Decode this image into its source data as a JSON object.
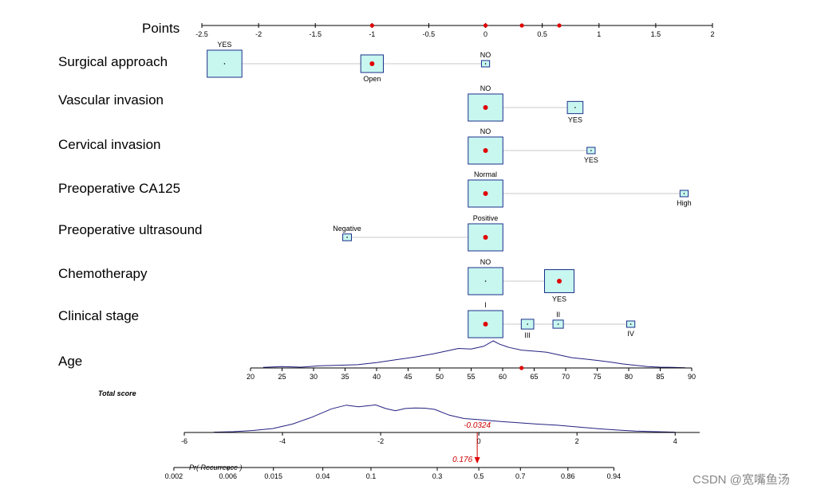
{
  "chart_data": {
    "type": "nomogram",
    "points_axis": {
      "label": "Points",
      "min": -2.5,
      "max": 2,
      "ticks": [
        -2.5,
        -2,
        -1.5,
        -1,
        -0.5,
        0,
        0.5,
        1,
        1.5,
        2
      ],
      "tick_labels": [
        "-2.5",
        "-2",
        "-1.5",
        "-1",
        "-0.5",
        "0",
        "0.5",
        "1",
        "1.5",
        "2"
      ],
      "highlight_points": [
        -1,
        0,
        0.32,
        0.65
      ]
    },
    "variables": [
      {
        "name": "Surgical approach",
        "levels": [
          {
            "label": "YES",
            "points": -2.3,
            "weight": 1.0,
            "label_pos": "above",
            "selected": false
          },
          {
            "label": "Open",
            "points": -1.0,
            "weight": 0.65,
            "label_pos": "below",
            "selected": true
          },
          {
            "label": "NO",
            "points": 0.0,
            "weight": 0.22,
            "label_pos": "above",
            "selected": false
          }
        ]
      },
      {
        "name": "Vascular invasion",
        "levels": [
          {
            "label": "NO",
            "points": 0.0,
            "weight": 1.0,
            "label_pos": "above",
            "selected": true
          },
          {
            "label": "YES",
            "points": 0.79,
            "weight": 0.45,
            "label_pos": "below",
            "selected": false
          }
        ]
      },
      {
        "name": "Cervical invasion",
        "levels": [
          {
            "label": "NO",
            "points": 0.0,
            "weight": 1.0,
            "label_pos": "above",
            "selected": true
          },
          {
            "label": "YES",
            "points": 0.93,
            "weight": 0.2,
            "label_pos": "below",
            "selected": false
          }
        ]
      },
      {
        "name": "Preoperative CA125",
        "levels": [
          {
            "label": "Normal",
            "points": 0.0,
            "weight": 1.0,
            "label_pos": "above",
            "selected": true
          },
          {
            "label": "High",
            "points": 1.75,
            "weight": 0.22,
            "label_pos": "below",
            "selected": false
          }
        ]
      },
      {
        "name": "Preoperative ultrasound",
        "levels": [
          {
            "label": "Negative",
            "points": -1.22,
            "weight": 0.25,
            "label_pos": "above",
            "selected": false
          },
          {
            "label": "Positive",
            "points": 0.0,
            "weight": 1.0,
            "label_pos": "above",
            "selected": true
          }
        ]
      },
      {
        "name": "Chemotherapy",
        "levels": [
          {
            "label": "NO",
            "points": 0.0,
            "weight": 1.0,
            "label_pos": "above",
            "selected": false
          },
          {
            "label": "YES",
            "points": 0.65,
            "weight": 0.85,
            "label_pos": "below",
            "selected": true
          }
        ]
      },
      {
        "name": "Clinical stage",
        "levels": [
          {
            "label": "I",
            "points": 0.0,
            "weight": 1.0,
            "label_pos": "above",
            "selected": true
          },
          {
            "label": "III",
            "points": 0.37,
            "weight": 0.36,
            "label_pos": "below",
            "selected": false
          },
          {
            "label": "II",
            "points": 0.64,
            "weight": 0.3,
            "label_pos": "above",
            "selected": false
          },
          {
            "label": "IV",
            "points": 1.28,
            "weight": 0.2,
            "label_pos": "below",
            "selected": false
          }
        ]
      }
    ],
    "age": {
      "label": "Age",
      "min": 20,
      "max": 90,
      "ticks": [
        20,
        25,
        30,
        35,
        40,
        45,
        50,
        55,
        60,
        65,
        70,
        75,
        80,
        85,
        90
      ],
      "tick_labels": [
        "20",
        "25",
        "30",
        "35",
        "40",
        "45",
        "50",
        "55",
        "60",
        "65",
        "70",
        "75",
        "80",
        "85",
        "90"
      ],
      "selected_value": 63,
      "density_x": [
        22,
        25,
        28,
        31,
        34,
        37,
        40,
        43,
        46,
        49,
        51,
        53,
        55,
        57,
        58.5,
        59.5,
        61,
        63,
        65,
        67,
        69,
        71,
        73,
        75,
        77,
        79,
        81,
        83,
        85,
        87,
        89
      ],
      "density_y": [
        0.02,
        0.05,
        0.03,
        0.08,
        0.1,
        0.12,
        0.2,
        0.3,
        0.4,
        0.52,
        0.62,
        0.72,
        0.7,
        0.8,
        1.0,
        0.88,
        0.76,
        0.66,
        0.62,
        0.58,
        0.48,
        0.38,
        0.33,
        0.28,
        0.22,
        0.15,
        0.1,
        0.05,
        0.03,
        0.02,
        0.01
      ]
    },
    "total_score": {
      "label": "Total score",
      "min": -6,
      "max": 4.5,
      "ticks": [
        -6,
        -4,
        -2,
        0,
        2,
        4
      ],
      "tick_labels": [
        "-6",
        "-4",
        "-2",
        "0",
        "2",
        "4"
      ],
      "value": -0.0324,
      "value_label": "-0.0324",
      "density_x": [
        -5.4,
        -5.0,
        -4.6,
        -4.2,
        -3.8,
        -3.4,
        -3.0,
        -2.7,
        -2.45,
        -2.3,
        -2.1,
        -1.9,
        -1.7,
        -1.5,
        -1.3,
        -1.1,
        -0.9,
        -0.6,
        -0.3,
        0,
        0.4,
        0.8,
        1.2,
        1.6,
        2.0,
        2.4,
        2.8,
        3.2,
        3.6,
        4.0
      ],
      "density_y": [
        0.01,
        0.03,
        0.07,
        0.14,
        0.3,
        0.55,
        0.85,
        0.98,
        0.92,
        0.95,
        0.99,
        0.86,
        0.78,
        0.86,
        0.88,
        0.87,
        0.83,
        0.62,
        0.5,
        0.46,
        0.4,
        0.35,
        0.3,
        0.26,
        0.2,
        0.14,
        0.09,
        0.05,
        0.03,
        0.01
      ]
    },
    "probability_axis": {
      "label": "Pr( Recurrence )",
      "ticks": [
        0.002,
        0.006,
        0.015,
        0.04,
        0.1,
        0.3,
        0.5,
        0.7,
        0.86,
        0.94
      ],
      "tick_labels": [
        "0.002",
        "0.006",
        "0.015",
        "0.04",
        "0.1",
        "0.3",
        "0.5",
        "0.7",
        "0.86",
        "0.94"
      ],
      "value": 0.176,
      "value_label": "0.176"
    },
    "watermark": "CSDN @宽嘴鱼汤"
  }
}
